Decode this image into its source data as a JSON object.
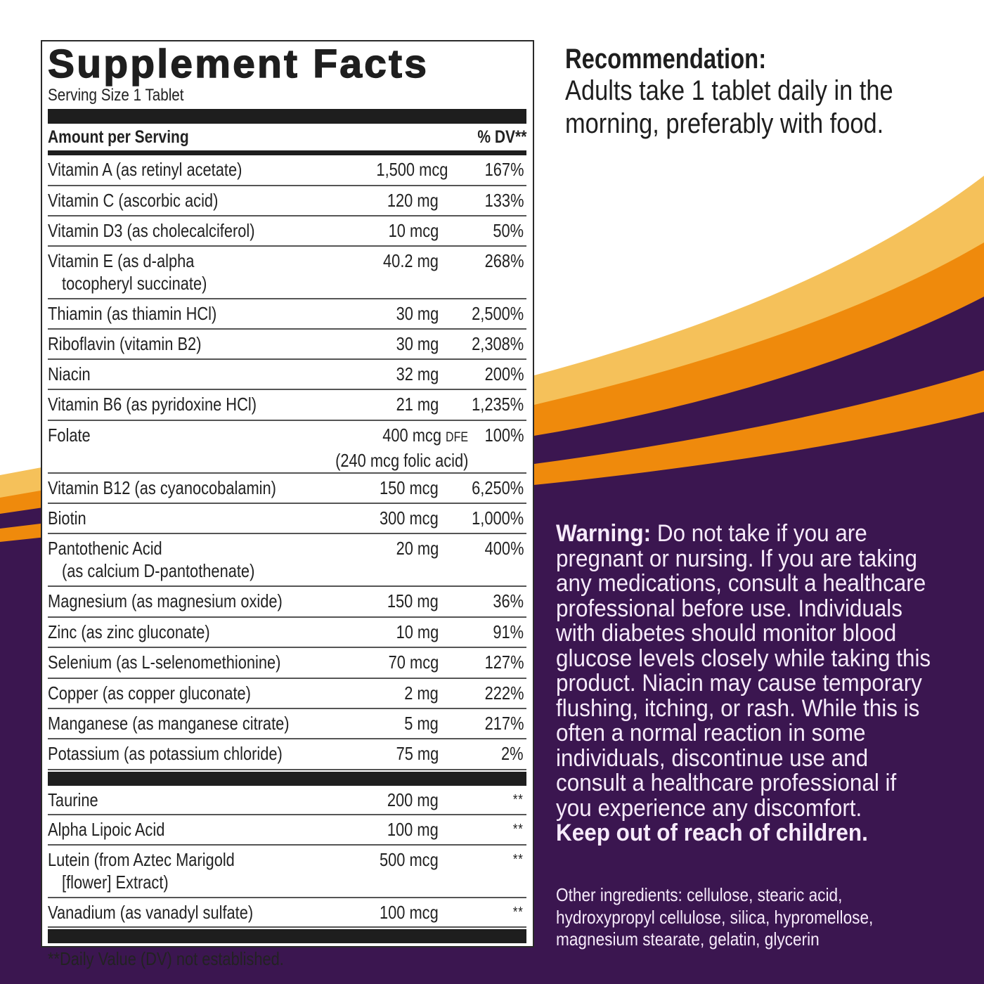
{
  "colors": {
    "purple": "#3b1650",
    "orange": "#ef8a0c",
    "light_orange": "#f5c15a",
    "white": "#ffffff",
    "text_dark": "#1e1e1e",
    "text_light": "#f7ebfb"
  },
  "facts": {
    "title": "Supplement Facts",
    "serving_size": "Serving Size 1 Tablet",
    "header_left": "Amount per Serving",
    "header_right": "% DV**",
    "rows": [
      {
        "name": "Vitamin A (as retinyl acetate)",
        "amount": "1,500 mcg",
        "dv": "167%"
      },
      {
        "name": "Vitamin C (ascorbic acid)",
        "amount": "120 mg",
        "dv": "133%"
      },
      {
        "name": "Vitamin D3 (as cholecalciferol)",
        "amount": "10 mcg",
        "dv": "50%"
      },
      {
        "name": "Vitamin E (as d-alpha",
        "name2": "tocopheryl succinate)",
        "amount": "40.2 mg",
        "dv": "268%"
      },
      {
        "name": "Thiamin (as thiamin HCl)",
        "amount": "30 mg",
        "dv": "2,500%"
      },
      {
        "name": "Riboflavin (vitamin B2)",
        "amount": "30 mg",
        "dv": "2,308%"
      },
      {
        "name": "Niacin",
        "amount": "32 mg",
        "dv": "200%"
      },
      {
        "name": "Vitamin B6 (as pyridoxine HCl)",
        "amount": "21 mg",
        "dv": "1,235%"
      },
      {
        "name": "Folate",
        "amount": "400 mcg",
        "amount_unit_suffix": "DFE",
        "amount2": "(240 mcg folic acid)",
        "dv": "100%"
      },
      {
        "name": "Vitamin B12 (as cyanocobalamin)",
        "amount": "150 mcg",
        "dv": "6,250%"
      },
      {
        "name": "Biotin",
        "amount": "300 mcg",
        "dv": "1,000%"
      },
      {
        "name": "Pantothenic Acid",
        "name2": "(as calcium D-pantothenate)",
        "amount": "20 mg",
        "dv": "400%"
      },
      {
        "name": "Magnesium (as magnesium oxide)",
        "amount": "150 mg",
        "dv": "36%"
      },
      {
        "name": "Zinc (as zinc gluconate)",
        "amount": "10 mg",
        "dv": "91%"
      },
      {
        "name": "Selenium (as L-selenomethionine)",
        "amount": "70 mcg",
        "dv": "127%"
      },
      {
        "name": "Copper (as copper gluconate)",
        "amount": "2 mg",
        "dv": "222%"
      },
      {
        "name": "Manganese (as manganese citrate)",
        "amount": "5 mg",
        "dv": "217%"
      },
      {
        "name": "Potassium (as potassium chloride)",
        "amount": "75 mg",
        "dv": "2%"
      }
    ],
    "other_rows": [
      {
        "name": "Taurine",
        "amount": "200 mg",
        "dv": "**"
      },
      {
        "name": "Alpha Lipoic Acid",
        "amount": "100 mg",
        "dv": "**"
      },
      {
        "name": "Lutein (from Aztec Marigold",
        "name2": "[flower] Extract)",
        "amount": "500 mcg",
        "dv": "**"
      },
      {
        "name": "Vanadium (as vanadyl sulfate)",
        "amount": "100 mcg",
        "dv": "**"
      }
    ],
    "footnote": "**Daily Value (DV) not established."
  },
  "recommendation": {
    "title": "Recommendation:",
    "lines": [
      "Adults take 1 tablet daily in the",
      "morning, preferably with food."
    ]
  },
  "warning": {
    "label": "Warning:",
    "lines": [
      " Do not take if you are",
      "pregnant or nursing. If you are taking",
      "any medications, consult a healthcare",
      "professional before use. Individuals",
      "with diabetes should monitor blood",
      "glucose levels closely while taking this",
      "product. Niacin may cause temporary",
      "flushing, itching, or rash. While this is",
      "often a normal reaction in some",
      "individuals, discontinue use and",
      "consult a healthcare professional if",
      "you experience any discomfort."
    ],
    "keep_out": "Keep out of reach of children."
  },
  "ingredients": {
    "lines": [
      "Other ingredients: cellulose, stearic acid,",
      "hydroxypropyl cellulose, silica, hypromellose,",
      "magnesium stearate, gelatin, glycerin"
    ]
  }
}
